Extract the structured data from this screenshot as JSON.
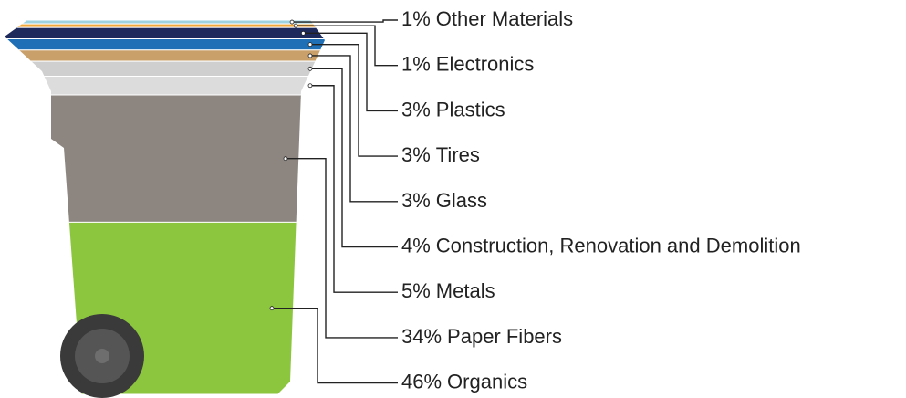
{
  "chart_data": {
    "type": "bin",
    "categories": [
      "Other Materials",
      "Electronics",
      "Plastics",
      "Tires",
      "Glass",
      "Construction, Renovation and Demolition",
      "Metals",
      "Paper Fibers",
      "Organics"
    ],
    "values": [
      1,
      1,
      3,
      3,
      3,
      4,
      5,
      34,
      46
    ],
    "value_labels": [
      "1%",
      "1%",
      "3%",
      "3%",
      "3%",
      "4%",
      "5%",
      "34%",
      "46%"
    ],
    "colors": [
      "#9fd3e0",
      "#f2a93b",
      "#1f2a5c",
      "#1e6fb5",
      "#c9a06a",
      "#cfcfcf",
      "#dcdcdc",
      "#8d8680",
      "#8cc63f"
    ]
  }
}
